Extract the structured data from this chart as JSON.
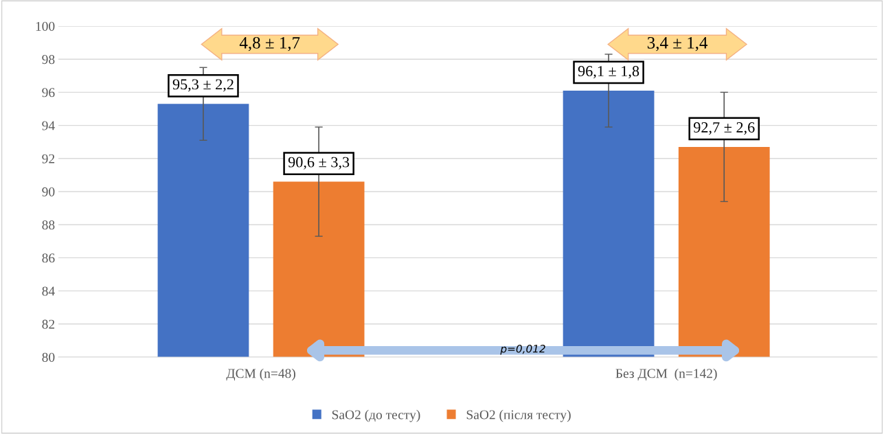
{
  "chart_data": {
    "type": "bar",
    "categories": [
      "ДСМ (n=48)",
      "Без ДСМ  (n=142)"
    ],
    "series": [
      {
        "name": "SaO2 (до тесту)",
        "color": "#4472c4",
        "values": [
          95.3,
          96.1
        ],
        "errors": [
          2.2,
          2.2
        ],
        "value_labels": [
          "95,3 ± 2,2",
          "96,1 ± 1,8"
        ]
      },
      {
        "name": "SaO2 (після тесту)",
        "color": "#ed7d31",
        "values": [
          90.6,
          92.7
        ],
        "errors": [
          3.3,
          3.3
        ],
        "value_labels": [
          "90,6 ± 3,3",
          "92,7 ± 2,6"
        ]
      }
    ],
    "ylim": [
      80,
      100
    ],
    "yticks": [
      80,
      82,
      84,
      86,
      88,
      90,
      92,
      94,
      96,
      98,
      100
    ],
    "grid": "y",
    "legend": "bottom",
    "annotations": [
      "4,8 ± 1,7",
      "3,4 ± 1,4",
      "p=0,012"
    ]
  }
}
